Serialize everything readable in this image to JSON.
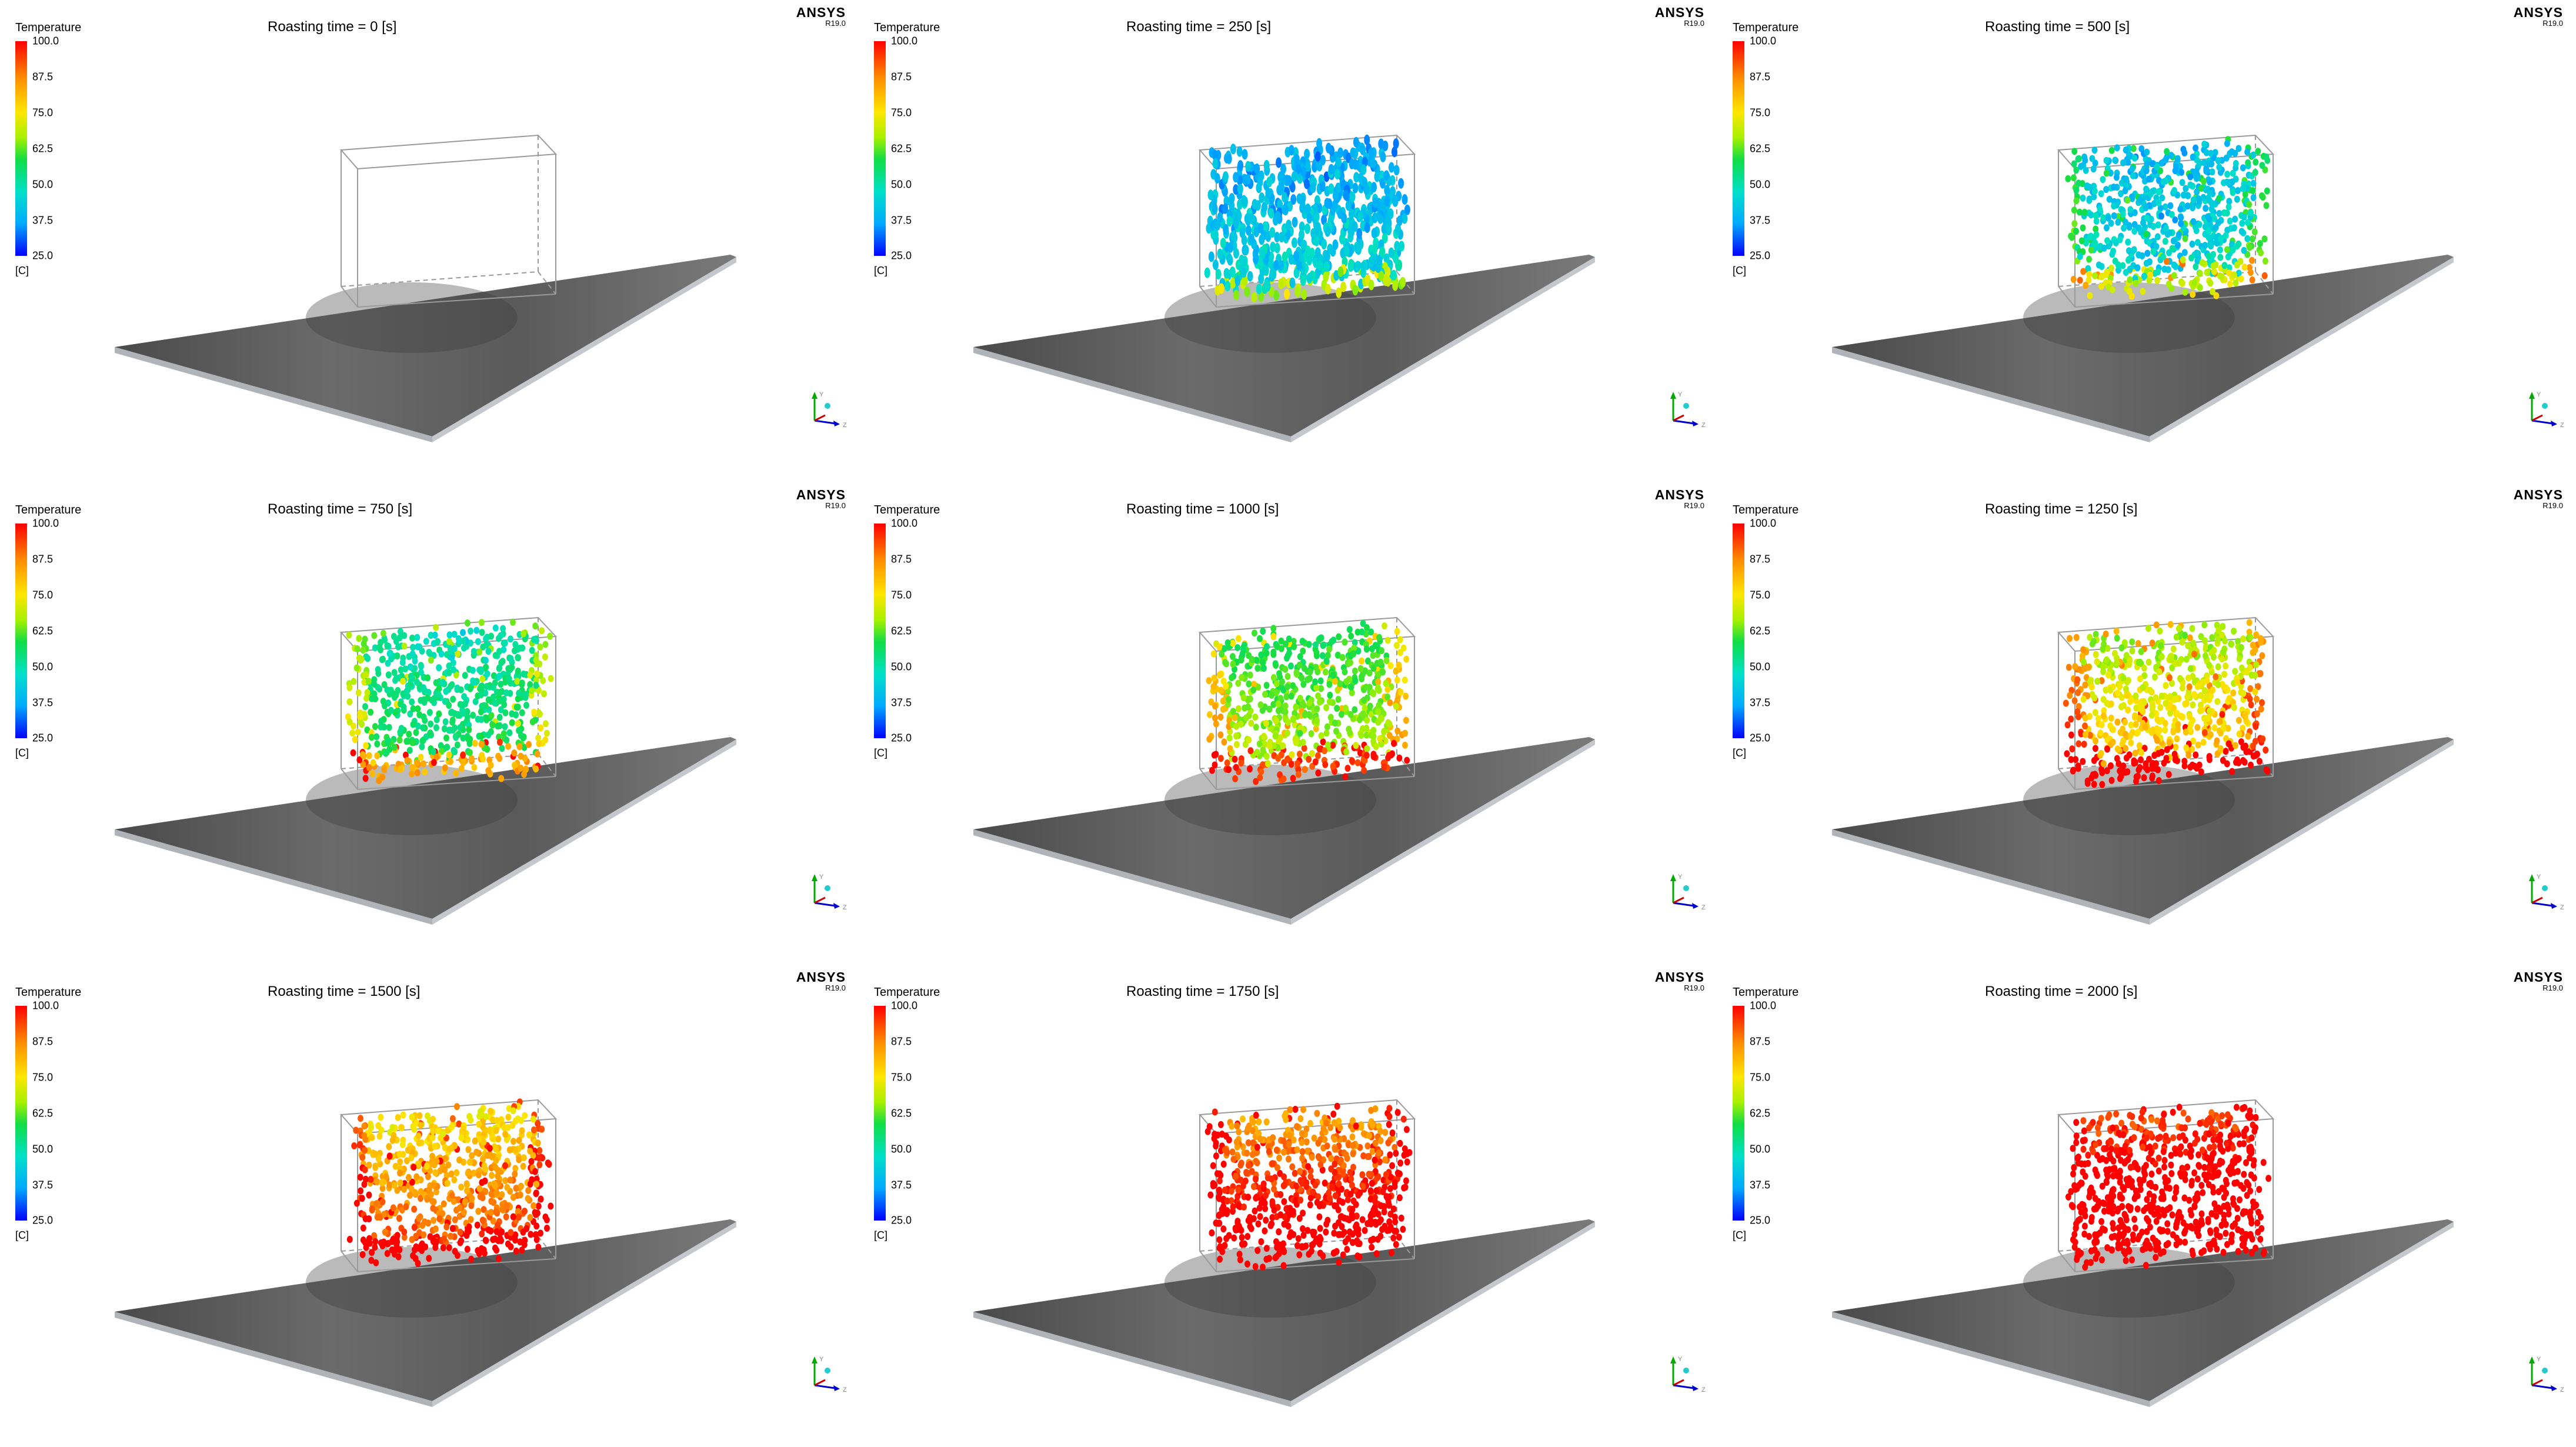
{
  "panels": [
    {
      "title": "Roasting time = 0 [s]",
      "stage": 0
    },
    {
      "title": "Roasting time = 250 [s]",
      "stage": 1
    },
    {
      "title": "Roasting time = 500 [s]",
      "stage": 2
    },
    {
      "title": "Roasting time = 750 [s]",
      "stage": 3
    },
    {
      "title": "Roasting time = 1000 [s]",
      "stage": 4
    },
    {
      "title": "Roasting time = 1250 [s]",
      "stage": 5
    },
    {
      "title": "Roasting time = 1500 [s]",
      "stage": 6
    },
    {
      "title": "Roasting time = 1750 [s]",
      "stage": 7
    },
    {
      "title": "Roasting time = 2000 [s]",
      "stage": 8
    }
  ],
  "legend": {
    "title": "Temperature",
    "ticks": [
      "100.0",
      "87.5",
      "75.0",
      "62.5",
      "50.0",
      "37.5",
      "25.0"
    ],
    "unit": "[C]"
  },
  "logo": {
    "brand": "ANSYS",
    "version": "R19.0"
  },
  "axes": {
    "x": "x",
    "y": "Y",
    "z": "Z"
  },
  "colors": {
    "hot": "#ff0000",
    "warm": "#ffe600",
    "mid": "#11dd44",
    "cool": "#00e0e0",
    "cold": "#0000ff",
    "plate": "#5c5c5c"
  }
}
